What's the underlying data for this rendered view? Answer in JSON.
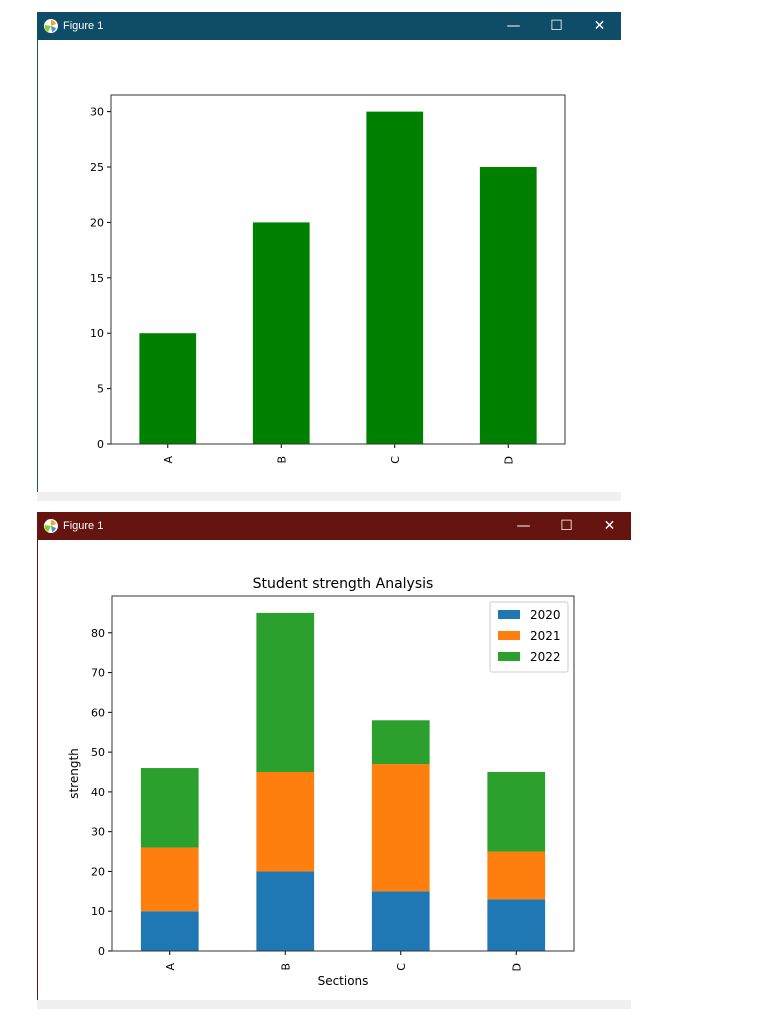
{
  "windows": [
    {
      "title": "Figure 1",
      "titlebar_color": "#0f4c67",
      "controls": {
        "minimize": "—",
        "maximize": "☐",
        "close": "✕"
      }
    },
    {
      "title": "Figure 1",
      "titlebar_color": "#661410",
      "controls": {
        "minimize": "—",
        "maximize": "☐",
        "close": "✕"
      }
    }
  ],
  "chart_data": [
    {
      "type": "bar",
      "categories": [
        "A",
        "B",
        "C",
        "D"
      ],
      "values": [
        10,
        20,
        30,
        25
      ],
      "color": "#008000",
      "ylim": [
        0,
        31.5
      ],
      "yticks": [
        0,
        5,
        10,
        15,
        20,
        25,
        30
      ],
      "title": "",
      "xlabel": "",
      "ylabel": "",
      "grid": false
    },
    {
      "type": "bar",
      "stacked": true,
      "title": "Student strength Analysis",
      "xlabel": "Sections",
      "ylabel": "strength",
      "categories": [
        "A",
        "B",
        "C",
        "D"
      ],
      "ylim": [
        0,
        89.25
      ],
      "yticks": [
        0,
        10,
        20,
        30,
        40,
        50,
        60,
        70,
        80
      ],
      "legend_position": "top-right",
      "grid": false,
      "series": [
        {
          "name": "2020",
          "values": [
            10,
            20,
            15,
            13
          ],
          "color": "#1f77b4"
        },
        {
          "name": "2021",
          "values": [
            16,
            25,
            32,
            12
          ],
          "color": "#ff7f0e"
        },
        {
          "name": "2022",
          "values": [
            20,
            40,
            11,
            20
          ],
          "color": "#2ca02c"
        }
      ]
    }
  ]
}
